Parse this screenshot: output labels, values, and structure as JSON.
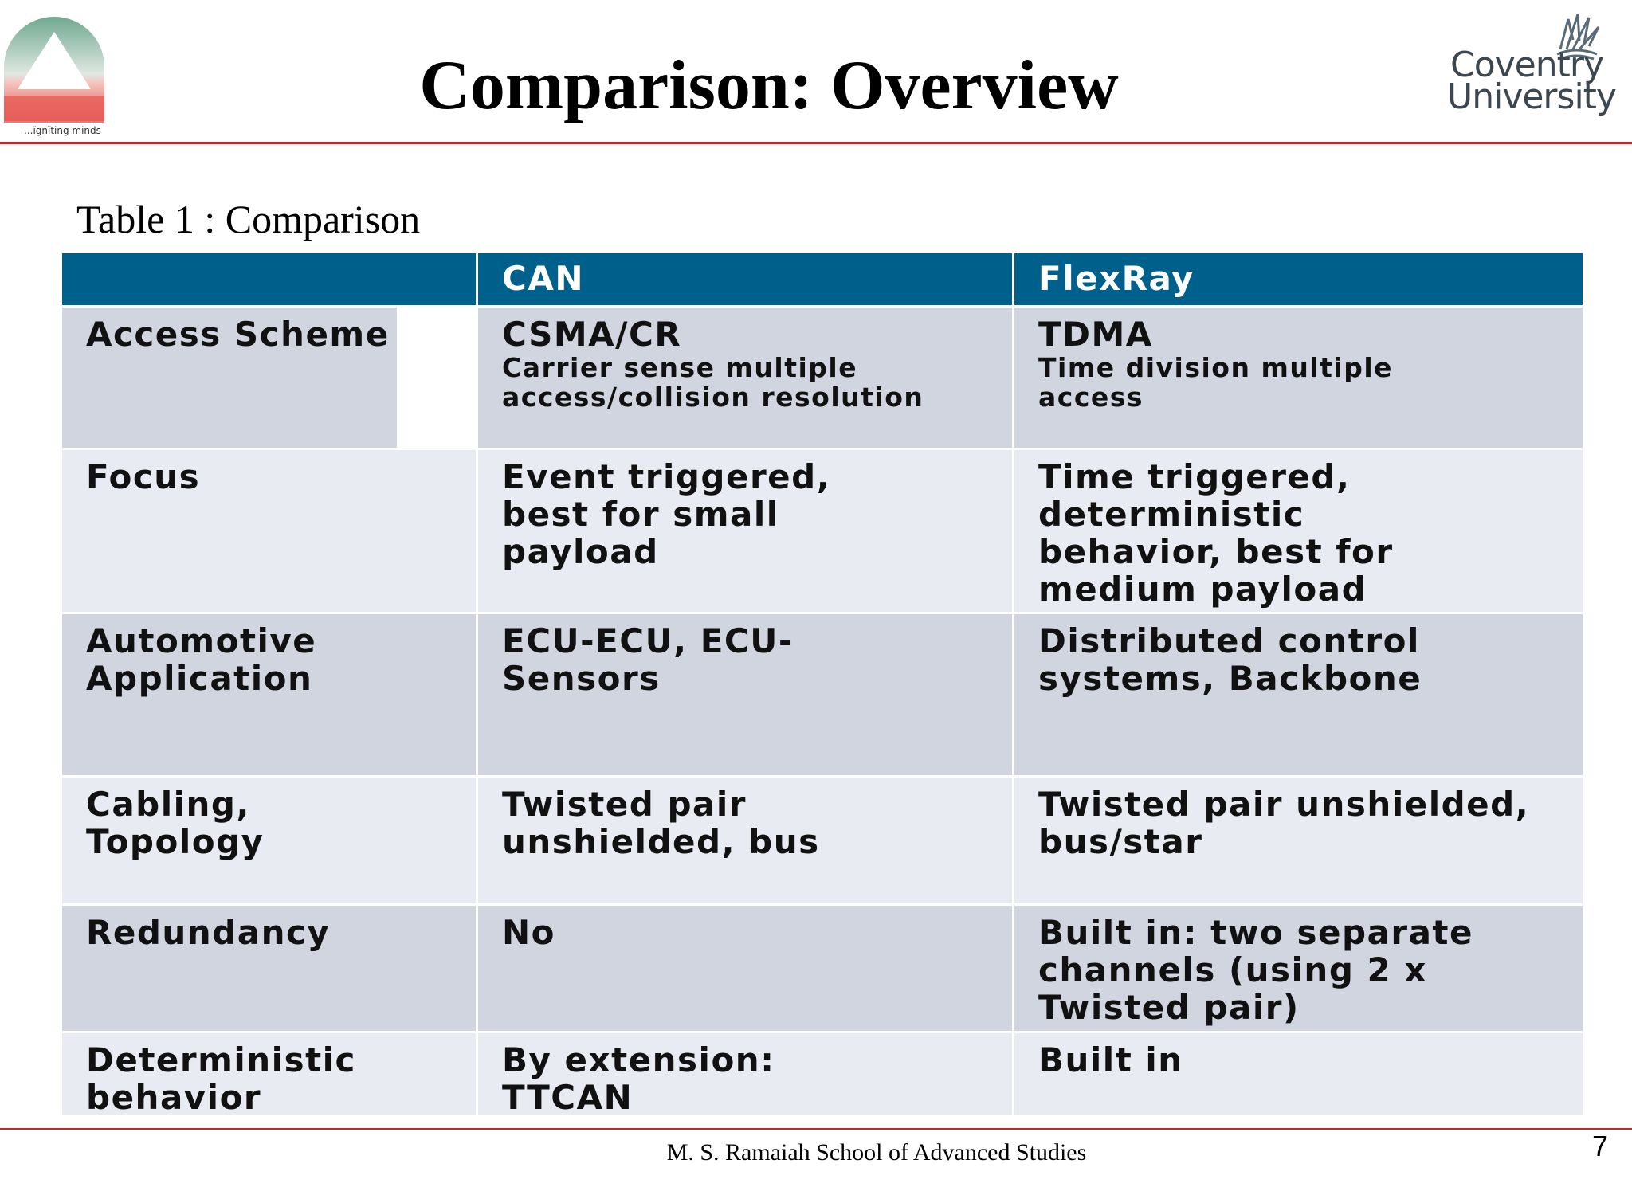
{
  "header": {
    "title": "Comparison: Overview",
    "left_logo": {
      "tagline": "...ïgnïting minds",
      "icon": "ramaiah-triangle-logo"
    },
    "right_logo": {
      "line1": "Coventry",
      "line2": "University",
      "icon": "coventry-phoenix-logo"
    },
    "accent_color": "#c62828"
  },
  "caption": "Table 1 : Comparison",
  "table": {
    "header_color": "#00608c",
    "columns": [
      "",
      "CAN",
      "FlexRay"
    ],
    "rows": [
      {
        "label": "Access Scheme",
        "can": "CSMA/CR",
        "can_detail": "Carrier sense multiple access/collision resolution",
        "flexray": "TDMA",
        "flexray_detail": "Time division multiple access"
      },
      {
        "label": "Focus",
        "can": "Event triggered, best for small payload",
        "can_detail": "",
        "flexray": "Time triggered, deterministic behavior, best for medium payload",
        "flexray_detail": ""
      },
      {
        "label": "Automotive Application",
        "can": "ECU-ECU, ECU-Sensors",
        "can_detail": "",
        "flexray": "Distributed control systems, Backbone",
        "flexray_detail": ""
      },
      {
        "label": "Cabling, Topology",
        "can": "Twisted pair unshielded, bus",
        "can_detail": "",
        "flexray": "Twisted pair unshielded, bus/star",
        "flexray_detail": ""
      },
      {
        "label": "Redundancy",
        "can": "No",
        "can_detail": "",
        "flexray": "Built in: two separate channels (using 2 x Twisted pair)",
        "flexray_detail": ""
      },
      {
        "label": "Deterministic behavior",
        "can": "By extension: TTCAN",
        "can_detail": "",
        "flexray": "Built in",
        "flexray_detail": ""
      }
    ]
  },
  "footer": {
    "institution": "M. S. Ramaiah School of Advanced Studies",
    "page_number": "7"
  }
}
